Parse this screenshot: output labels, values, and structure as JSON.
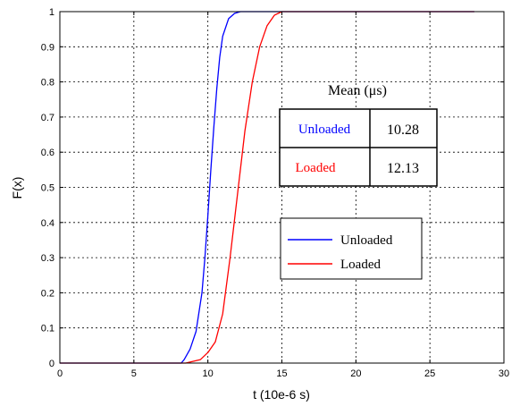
{
  "chart_data": {
    "type": "line",
    "xlabel": "t  (10e-6 s)",
    "ylabel": "F(x)",
    "xlim": [
      0,
      30
    ],
    "ylim": [
      0,
      1
    ],
    "x_ticks": [
      "0",
      "5",
      "10",
      "15",
      "20",
      "25",
      "30"
    ],
    "y_ticks": [
      "0",
      "0.1",
      "0.2",
      "0.3",
      "0.4",
      "0.5",
      "0.6",
      "0.7",
      "0.8",
      "0.9",
      "1"
    ],
    "grid": true,
    "legend_position": "lower-right",
    "series": [
      {
        "name": "Unloaded",
        "color": "#0000ff",
        "x": [
          0,
          8.2,
          8.4,
          8.8,
          9.2,
          9.6,
          9.8,
          10.0,
          10.2,
          10.4,
          10.6,
          10.8,
          11.0,
          11.4,
          11.8,
          12.2,
          28
        ],
        "y": [
          0,
          0,
          0.01,
          0.04,
          0.09,
          0.2,
          0.3,
          0.42,
          0.55,
          0.67,
          0.78,
          0.87,
          0.93,
          0.98,
          0.995,
          1,
          1
        ]
      },
      {
        "name": "Loaded",
        "color": "#ff0000",
        "x": [
          0,
          8.5,
          9.5,
          10.0,
          10.5,
          11.0,
          11.5,
          12.0,
          12.5,
          13.0,
          13.5,
          14.0,
          14.5,
          15.0,
          28
        ],
        "y": [
          0,
          0,
          0.01,
          0.03,
          0.06,
          0.14,
          0.3,
          0.48,
          0.66,
          0.8,
          0.9,
          0.96,
          0.99,
          1,
          1
        ]
      }
    ]
  },
  "mean_table": {
    "title": "Mean  (μs)",
    "rows": [
      {
        "label": "Unloaded",
        "value": "10.28",
        "color": "#0000ff"
      },
      {
        "label": "Loaded",
        "value": "12.13",
        "color": "#ff0000"
      }
    ]
  }
}
